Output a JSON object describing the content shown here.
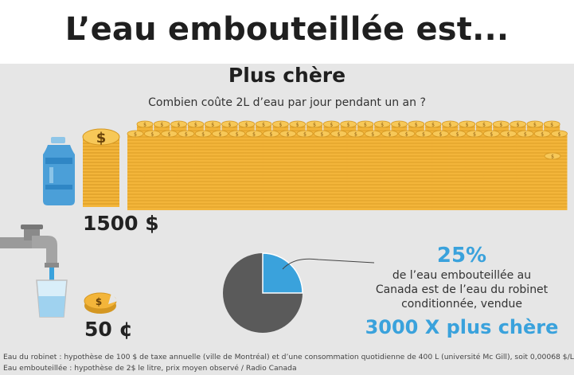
{
  "header": {
    "title": "L’eau embouteillée est..."
  },
  "section": {
    "subtitle": "Plus chère",
    "question": "Combien coûte 2L d’eau par jour pendant un an ?"
  },
  "bottled": {
    "cost": "1500 $",
    "coin_symbol": "$"
  },
  "tap": {
    "cost": "50 ¢",
    "coin_symbol": "$"
  },
  "stat": {
    "percent": "25%",
    "lines": [
      "de l’eau embouteillée au",
      "Canada est de l’eau du robinet",
      "conditionnée, vendue"
    ],
    "emphasis": "3000 X plus chère",
    "tap_share": 0.25
  },
  "colors": {
    "coin": "#f3b53a",
    "coin_dark": "#d49722",
    "blue": "#3aa2dc",
    "pie_gray": "#5a5a5a"
  },
  "footnotes": [
    "Eau du robinet : hypothèse de 100 $ de taxe annuelle (ville de Montréal) et d’une consommation quotidienne de 400 L (université Mc Gill), soit 0,00068 $/L",
    "Eau embouteillée : hypothèse de 2$ le litre, prix moyen observé / Radio Canada"
  ]
}
